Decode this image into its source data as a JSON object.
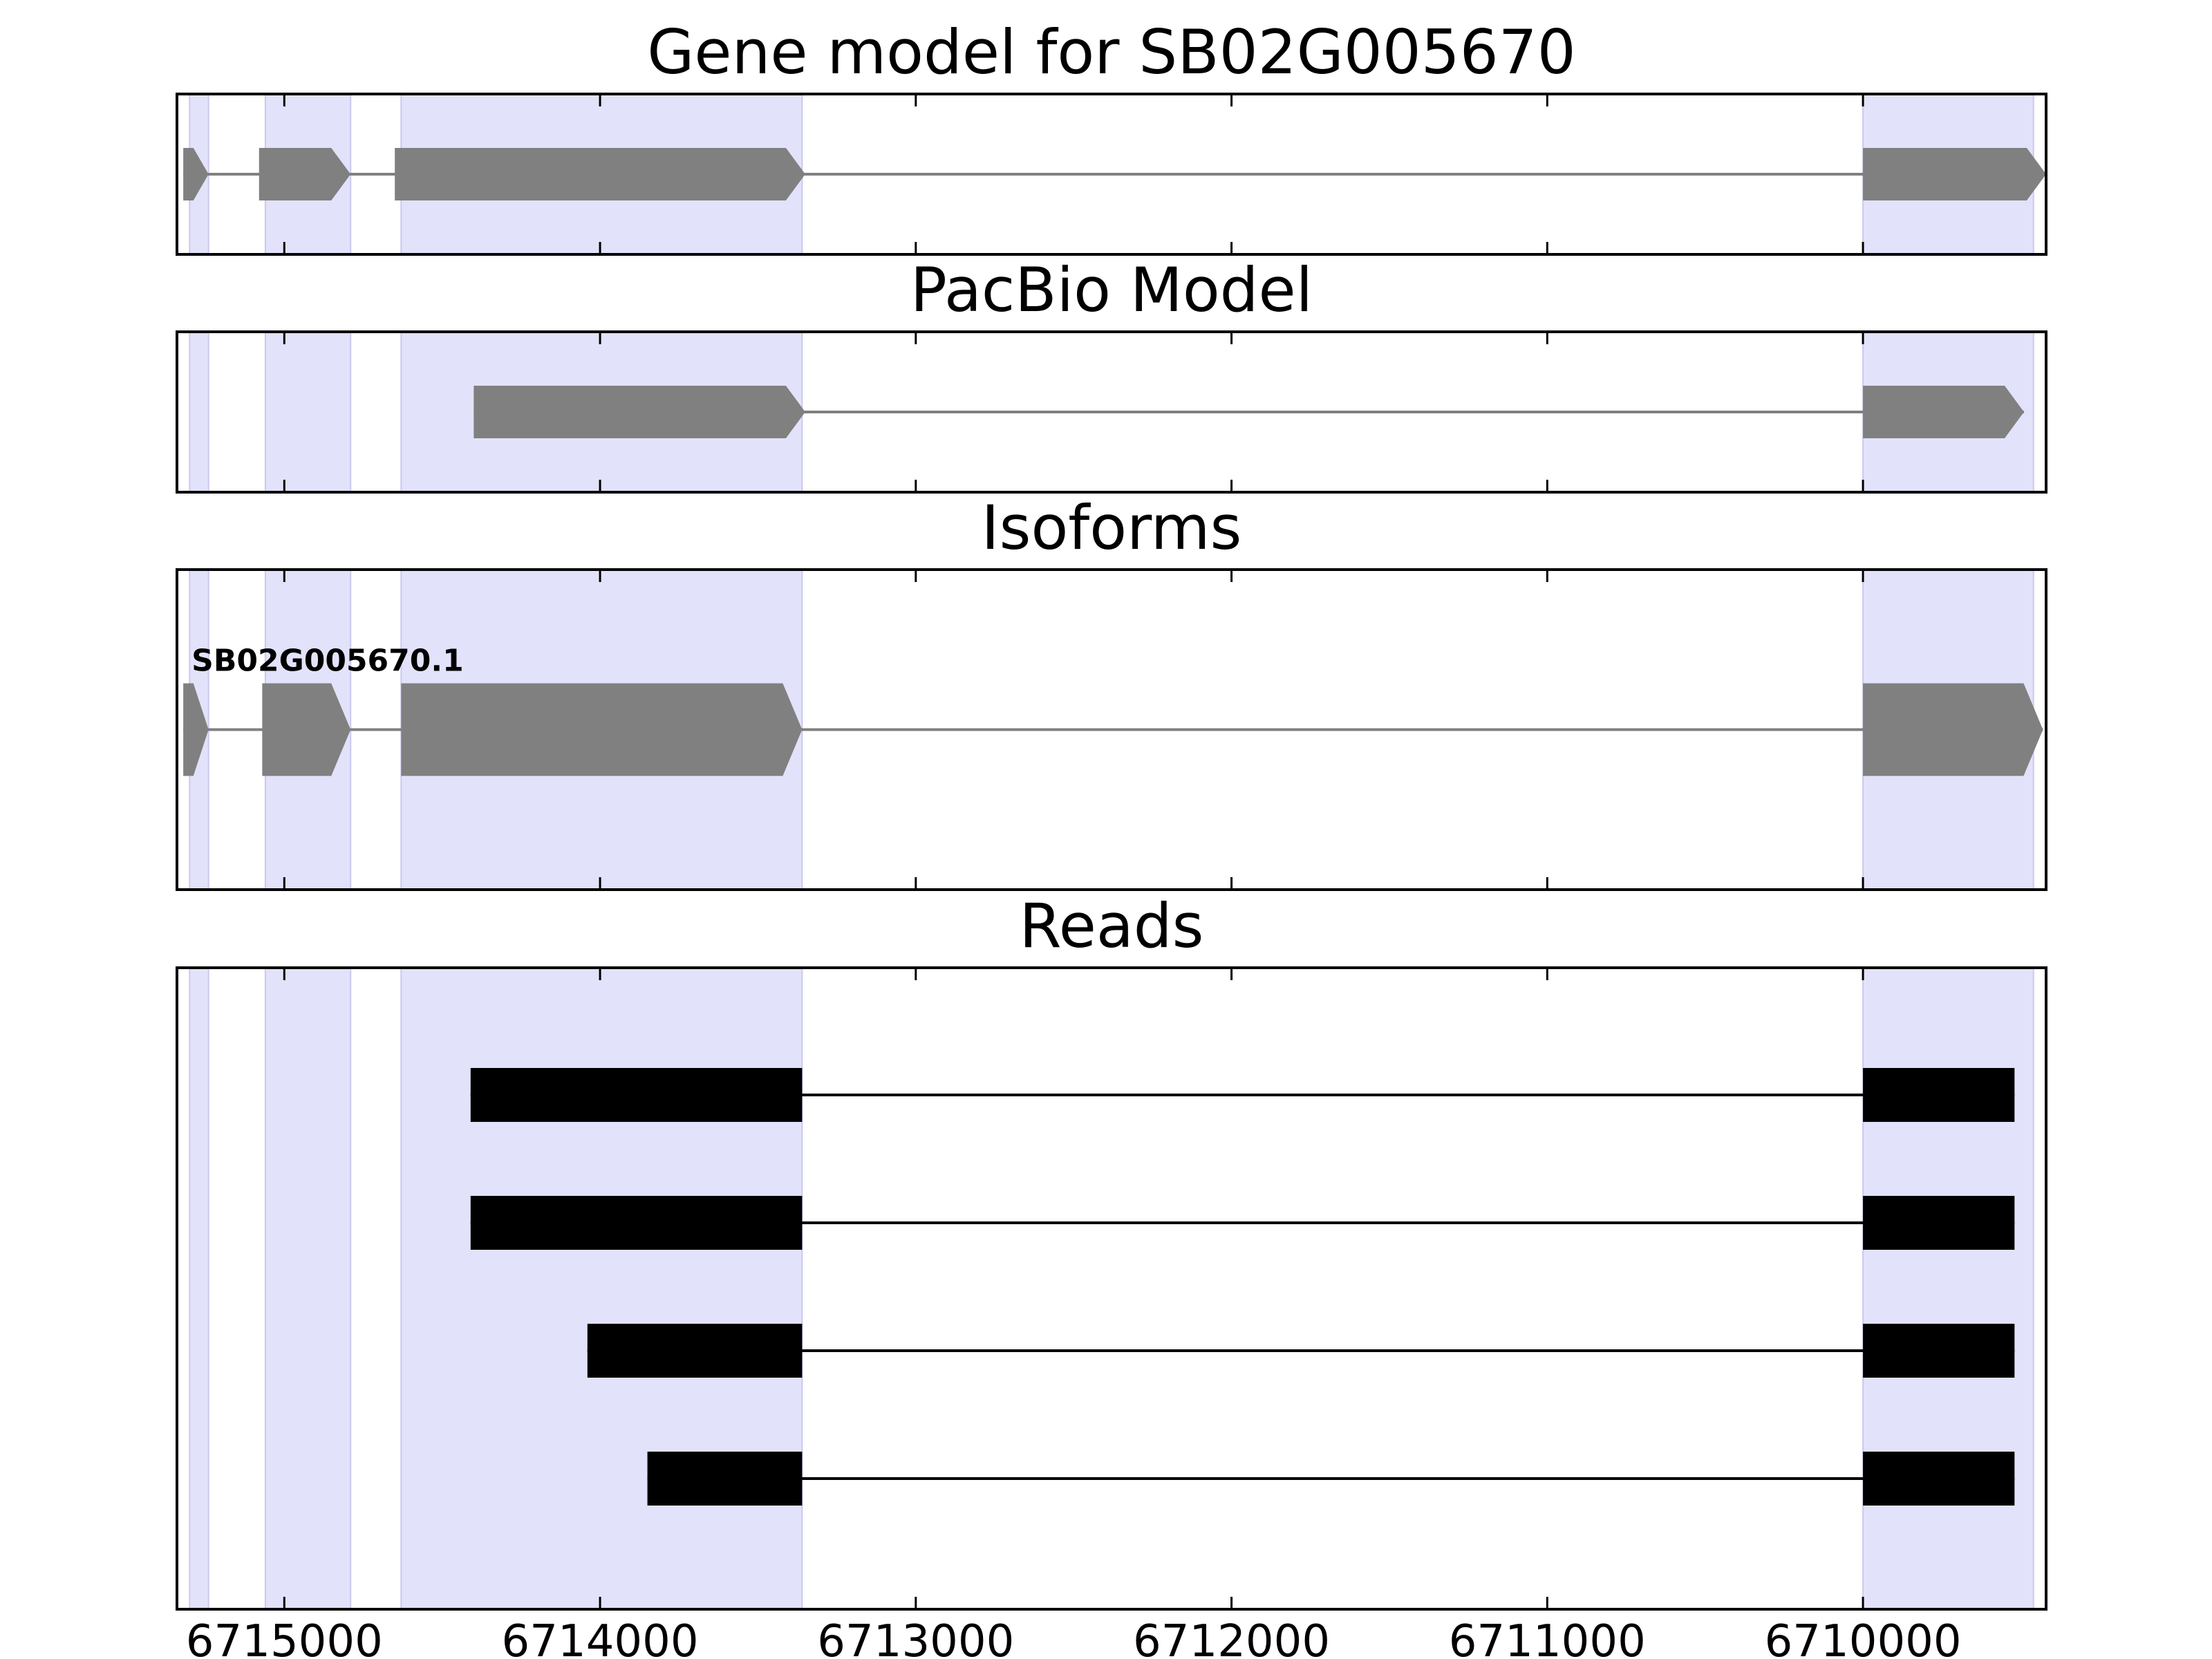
{
  "chart_data": {
    "type": "gene_track",
    "x_axis": {
      "reversed": true,
      "xlim": [
        6715340,
        6709420
      ],
      "ticks": [
        6715000,
        6714000,
        6713000,
        6712000,
        6711000,
        6710000
      ],
      "tick_labels": [
        "6715000",
        "6714000",
        "6713000",
        "6712000",
        "6711000",
        "6710000"
      ]
    },
    "highlight_regions": [
      [
        6715300,
        6715240
      ],
      [
        6715060,
        6714790
      ],
      [
        6714630,
        6713360
      ],
      [
        6710000,
        6709460
      ]
    ],
    "panels": [
      {
        "title": "Gene model for SB02G005670",
        "kind": "gene",
        "features": [
          {
            "strand": "-",
            "exons": [
              [
                6715320,
                6715240
              ],
              [
                6715080,
                6714790
              ],
              [
                6714650,
                6713350
              ],
              [
                6710000,
                6709420
              ]
            ]
          }
        ]
      },
      {
        "title": "PacBio Model",
        "kind": "gene",
        "features": [
          {
            "strand": "-",
            "exons": [
              [
                6714400,
                6713350
              ],
              [
                6710000,
                6709490
              ]
            ]
          }
        ]
      },
      {
        "title": "Isoforms",
        "kind": "gene",
        "features": [
          {
            "label": "SB02G005670.1",
            "strand": "-",
            "exons": [
              [
                6715320,
                6715240
              ],
              [
                6715070,
                6714790
              ],
              [
                6714630,
                6713360
              ],
              [
                6710000,
                6709430
              ]
            ]
          }
        ]
      },
      {
        "title": "Reads",
        "kind": "reads",
        "features": [
          {
            "exons": [
              [
                6714410,
                6713360
              ],
              [
                6710000,
                6709520
              ]
            ]
          },
          {
            "exons": [
              [
                6714410,
                6713360
              ],
              [
                6710000,
                6709520
              ]
            ]
          },
          {
            "exons": [
              [
                6714040,
                6713360
              ],
              [
                6710000,
                6709520
              ]
            ]
          },
          {
            "exons": [
              [
                6713850,
                6713360
              ],
              [
                6710000,
                6709520
              ]
            ]
          }
        ]
      }
    ],
    "colors": {
      "highlight": "#e2e2fb",
      "highlight_edge": "#c9c9ee",
      "gene_feature": "#808080",
      "read_feature": "#000000",
      "frame": "#000000"
    }
  }
}
